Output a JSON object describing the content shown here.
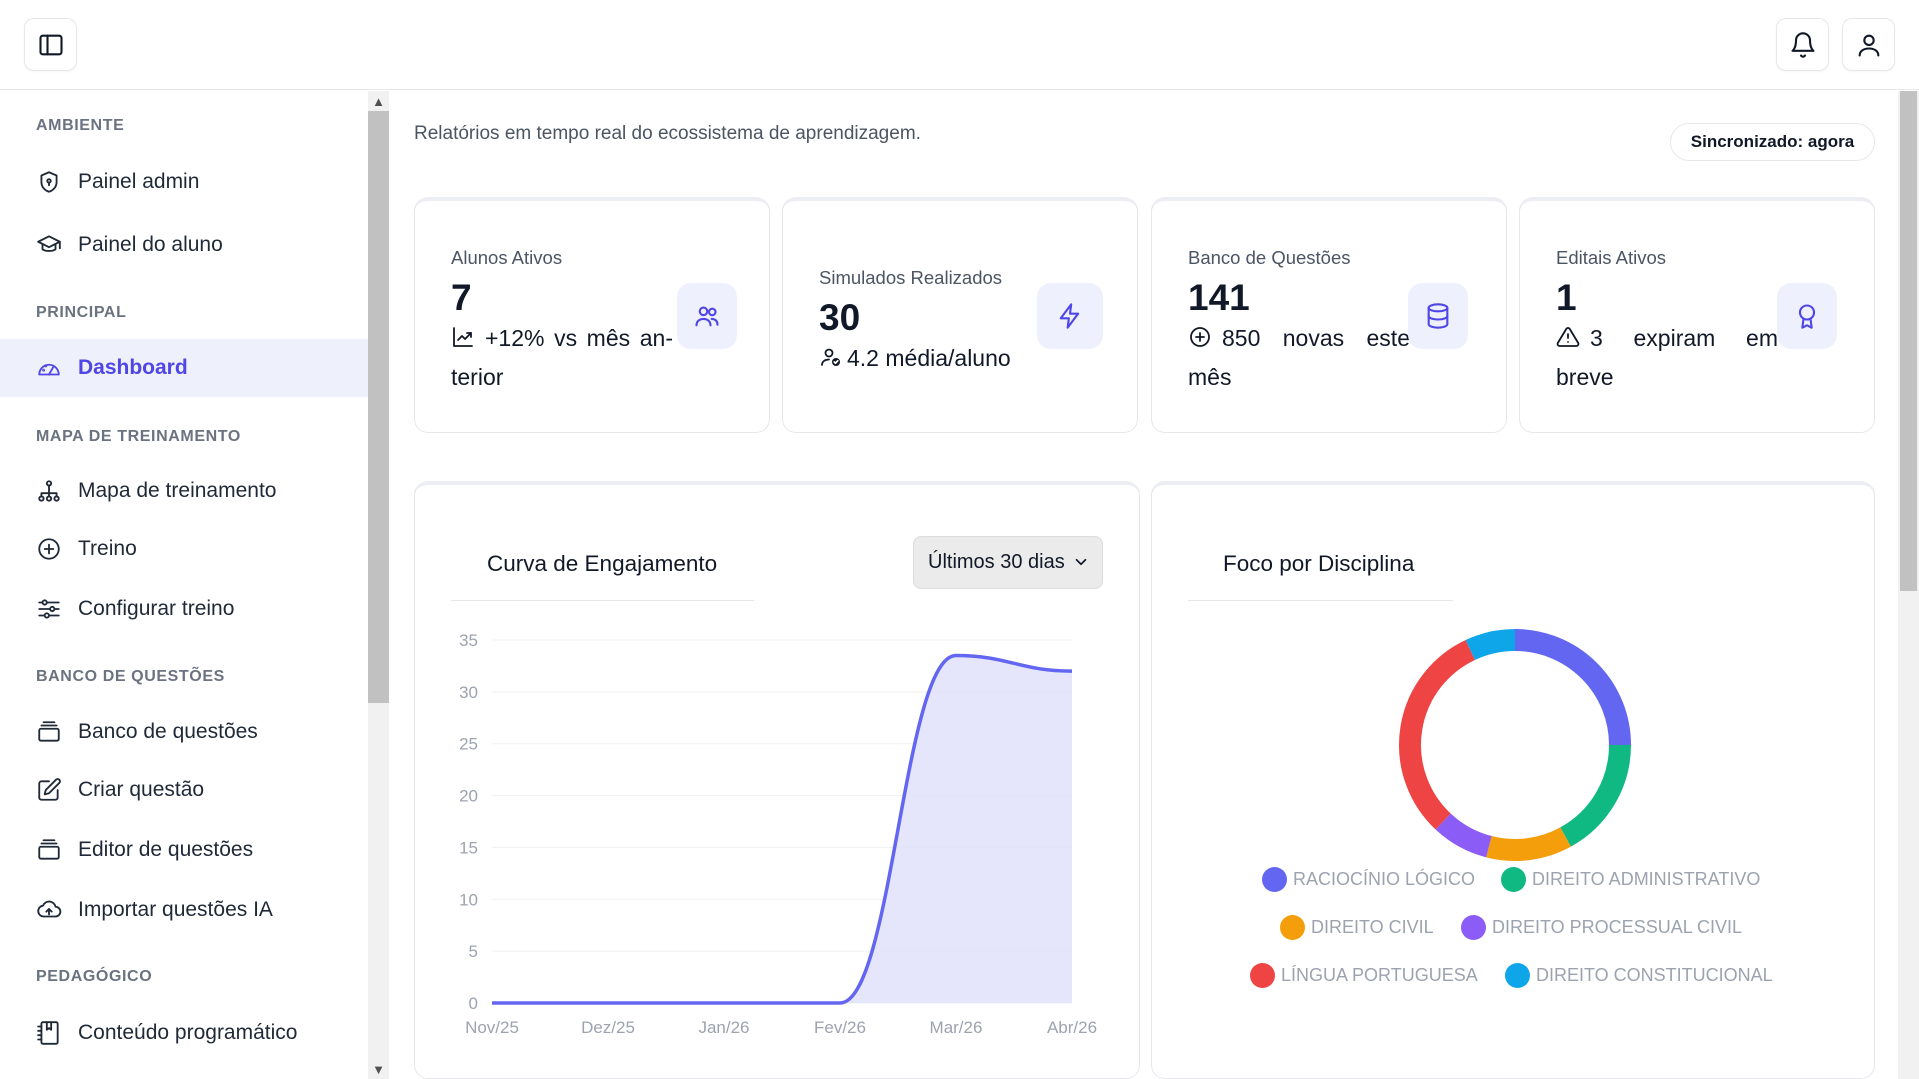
{
  "topbar": {
    "sidebar_toggle_icon": "panel-left-icon",
    "notifications_icon": "bell-icon",
    "profile_icon": "user-icon"
  },
  "sidebar": {
    "sections": [
      {
        "title": "AMBIENTE",
        "items": [
          {
            "label": "Painel admin",
            "icon": "shield-icon"
          },
          {
            "label": "Painel do aluno",
            "icon": "graduation-cap-icon"
          }
        ]
      },
      {
        "title": "PRINCIPAL",
        "items": [
          {
            "label": "Dashboard",
            "icon": "gauge-icon",
            "active": true
          }
        ]
      },
      {
        "title": "MAPA DE TREINAMENTO",
        "items": [
          {
            "label": "Mapa de treinamento",
            "icon": "network-icon"
          },
          {
            "label": "Treino",
            "icon": "plus-circle-icon"
          },
          {
            "label": "Configurar treino",
            "icon": "sliders-icon"
          }
        ]
      },
      {
        "title": "BANCO DE QUESTÕES",
        "items": [
          {
            "label": "Banco de questões",
            "icon": "stack-icon"
          },
          {
            "label": "Criar questão",
            "icon": "edit-icon"
          },
          {
            "label": "Editor de questões",
            "icon": "stack-icon"
          },
          {
            "label": "Importar questões IA",
            "icon": "cloud-upload-icon"
          }
        ]
      },
      {
        "title": "PEDAGÓGICO",
        "items": [
          {
            "label": "Conteúdo programático",
            "icon": "notebook-icon"
          }
        ]
      }
    ]
  },
  "header": {
    "subtitle": "Relatórios em tempo real do ecossistema de aprendizagem.",
    "sync_status": "Sincronizado: agora"
  },
  "stats": [
    {
      "label": "Alunos Ativos",
      "value": "7",
      "sub": "+12% vs mês an-terior",
      "sub_icon": "trending-up-icon",
      "icon": "users-icon"
    },
    {
      "label": "Simulados Realizados",
      "value": "30",
      "sub": "4.2 média/aluno",
      "sub_icon": "user-check-icon",
      "icon": "zap-icon"
    },
    {
      "label": "Banco de Questões",
      "value": "141",
      "sub": "850 novas este mês",
      "sub_icon": "plus-circle-icon",
      "icon": "database-icon"
    },
    {
      "label": "Editais Ativos",
      "value": "1",
      "sub": "3 expiram em breve",
      "sub_icon": "alert-triangle-icon",
      "icon": "award-icon"
    }
  ],
  "engagement": {
    "title": "Curva de Engajamento",
    "range_selected": "Últimos 30 dias"
  },
  "focus": {
    "title": "Foco por Disciplina"
  },
  "colors": {
    "accent": "#4f46e5",
    "line": "#6366f1",
    "area": "#e0e1fa"
  },
  "chart_data": [
    {
      "type": "area",
      "title": "Curva de Engajamento",
      "x": [
        "Nov/25",
        "Dez/25",
        "Jan/26",
        "Fev/26",
        "Mar/26",
        "Abr/26"
      ],
      "series": [
        {
          "values": [
            0,
            0,
            0,
            0,
            33.5,
            32
          ]
        }
      ],
      "ylim": [
        0,
        35
      ],
      "yticks": [
        0,
        5,
        10,
        15,
        20,
        25,
        30,
        35
      ],
      "grid": true
    },
    {
      "type": "pie",
      "title": "Foco por Disciplina",
      "slices": [
        {
          "label": "RACIOCÍNIO LÓGICO",
          "value": 25,
          "color": "#6366f1"
        },
        {
          "label": "DIREITO ADMINISTRATIVO",
          "value": 17,
          "color": "#10b981"
        },
        {
          "label": "DIREITO CIVIL",
          "value": 12,
          "color": "#f59e0b"
        },
        {
          "label": "DIREITO PROCESSUAL CIVIL",
          "value": 8,
          "color": "#8b5cf6"
        },
        {
          "label": "LÍNGUA PORTUGUESA",
          "value": 31,
          "color": "#ef4444"
        },
        {
          "label": "DIREITO CONSTITUCIONAL",
          "value": 7,
          "color": "#0ea5e9"
        }
      ],
      "legend": "bottom"
    }
  ]
}
